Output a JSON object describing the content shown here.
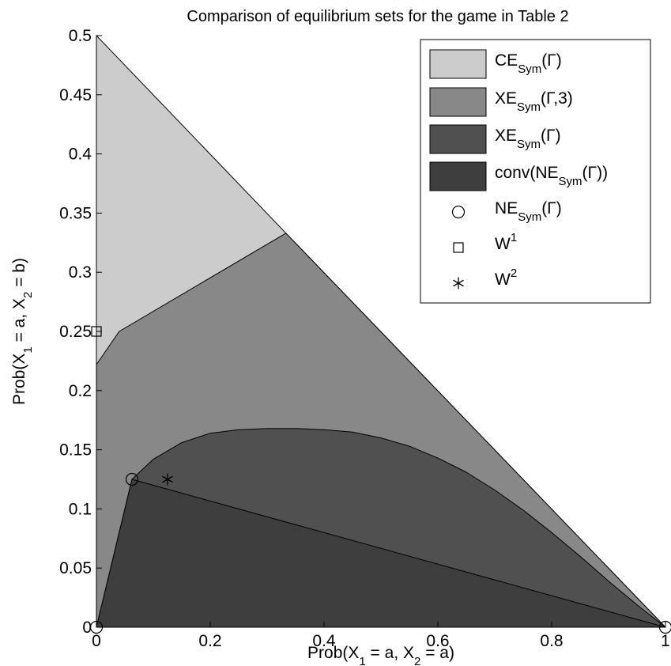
{
  "chart_data": {
    "type": "area",
    "title": "Comparison of equilibrium sets for the game in Table 2",
    "xlabel": "Prob(X₁ = a, X₂ = a)",
    "ylabel": "Prob(X₁ = a, X₂ = b)",
    "xlim": [
      0,
      1
    ],
    "ylim": [
      0,
      0.5
    ],
    "xticks": [
      0,
      0.2,
      0.4,
      0.6,
      0.8,
      1
    ],
    "xtick_labels": [
      "0",
      "0.2",
      "0.4",
      "0.6",
      "0.8",
      "1"
    ],
    "yticks": [
      0,
      0.05,
      0.1,
      0.15,
      0.2,
      0.25,
      0.3,
      0.35,
      0.4,
      0.45,
      0.5
    ],
    "ytick_labels": [
      "0",
      "0.05",
      "0.1",
      "0.15",
      "0.2",
      "0.25",
      "0.3",
      "0.35",
      "0.4",
      "0.45",
      "0.5"
    ],
    "grid": false,
    "legend_position": "top-right",
    "series": [
      {
        "name": "CE_Sym(Γ)",
        "kind": "region",
        "color": "#cccccc",
        "points": [
          [
            0,
            0
          ],
          [
            0,
            0.5
          ],
          [
            0.333,
            0.333
          ],
          [
            1,
            0
          ]
        ]
      },
      {
        "name": "XE_Sym(Γ,3)",
        "kind": "region",
        "color": "#888888",
        "points": [
          [
            0,
            0
          ],
          [
            0,
            0.222
          ],
          [
            0.04,
            0.25
          ],
          [
            0.333,
            0.333
          ],
          [
            1,
            0
          ]
        ]
      },
      {
        "name": "XE_Sym(Γ)",
        "kind": "region",
        "color": "#505050",
        "points": [
          [
            0,
            0
          ],
          [
            0.0625,
            0.125
          ],
          [
            0.1,
            0.142
          ],
          [
            0.15,
            0.156
          ],
          [
            0.2,
            0.164
          ],
          [
            0.25,
            0.167
          ],
          [
            0.3,
            0.168
          ],
          [
            0.35,
            0.168
          ],
          [
            0.4,
            0.167
          ],
          [
            0.45,
            0.165
          ],
          [
            0.5,
            0.16
          ],
          [
            0.55,
            0.153
          ],
          [
            0.6,
            0.143
          ],
          [
            0.65,
            0.131
          ],
          [
            0.7,
            0.116
          ],
          [
            0.75,
            0.099
          ],
          [
            0.8,
            0.08
          ],
          [
            0.85,
            0.06
          ],
          [
            0.9,
            0.039
          ],
          [
            0.95,
            0.019
          ],
          [
            1,
            0
          ]
        ]
      },
      {
        "name": "conv(NE_Sym(Γ))",
        "kind": "region",
        "color": "#3e3e3e",
        "points": [
          [
            0,
            0
          ],
          [
            0.0625,
            0.125
          ],
          [
            1,
            0
          ]
        ]
      },
      {
        "name": "NE_Sym(Γ)",
        "kind": "marker",
        "marker": "circle",
        "points": [
          [
            0,
            0
          ],
          [
            0.0625,
            0.125
          ],
          [
            1,
            0
          ]
        ]
      },
      {
        "name": "W¹",
        "kind": "marker",
        "marker": "square",
        "points": [
          [
            0,
            0.25
          ]
        ]
      },
      {
        "name": "W²",
        "kind": "marker",
        "marker": "asterisk",
        "points": [
          [
            0.125,
            0.125
          ]
        ]
      }
    ],
    "legend": [
      {
        "main": "CE",
        "sub": "Sym",
        "rest": "(Γ)",
        "symbol": "patch",
        "color": "#cccccc"
      },
      {
        "main": "XE",
        "sub": "Sym",
        "rest": "(Γ,3)",
        "symbol": "patch",
        "color": "#888888"
      },
      {
        "main": "XE",
        "sub": "Sym",
        "rest": "(Γ)",
        "symbol": "patch",
        "color": "#505050"
      },
      {
        "main": "conv(NE",
        "sub": "Sym",
        "rest": "(Γ))",
        "symbol": "patch",
        "color": "#3e3e3e"
      },
      {
        "main": "NE",
        "sub": "Sym",
        "rest": "(Γ)",
        "symbol": "circle"
      },
      {
        "main": "W",
        "sup": "1",
        "rest": "",
        "symbol": "square"
      },
      {
        "main": "W",
        "sup": "2",
        "rest": "",
        "symbol": "asterisk"
      }
    ]
  }
}
